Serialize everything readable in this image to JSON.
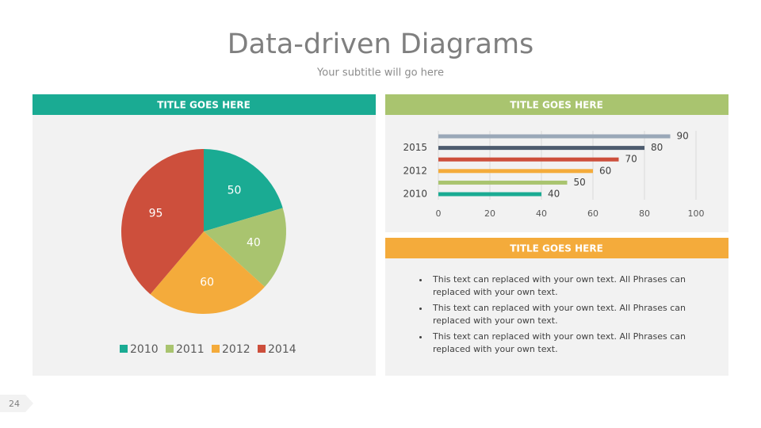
{
  "title": "Data-driven Diagrams",
  "subtitle": "Your subtitle will go here",
  "page_number": "24",
  "chart_data": [
    {
      "type": "pie",
      "title": "TITLE GOES HERE",
      "categories": [
        "2010",
        "2011",
        "2012",
        "2014"
      ],
      "values": [
        50,
        40,
        60,
        95
      ],
      "colors": [
        "#1aab93",
        "#a9c46f",
        "#f4ab3b",
        "#cd4f3c"
      ],
      "legend": "bottom"
    },
    {
      "type": "hbar",
      "title": "TITLE GOES HERE",
      "categories": [
        "2010",
        null,
        "2012",
        null,
        "2015",
        null
      ],
      "values": [
        40,
        50,
        60,
        70,
        80,
        90
      ],
      "colors": [
        "#1aab93",
        "#a9c46f",
        "#f4ab3b",
        "#cd4f3c",
        "#4d5b6e",
        "#9aa8b8"
      ],
      "xlim": [
        0,
        100
      ],
      "xticks": [
        0,
        20,
        40,
        60,
        80,
        100
      ],
      "grid": true
    }
  ],
  "text_panel": {
    "title": "TITLE GOES HERE",
    "bullets": [
      "This text can replaced with your own text. All Phrases can replaced with your own text.",
      "This text can replaced with your own text. All Phrases can replaced with your own text.",
      "This text can replaced with your own text. All Phrases can replaced with your own text."
    ]
  }
}
